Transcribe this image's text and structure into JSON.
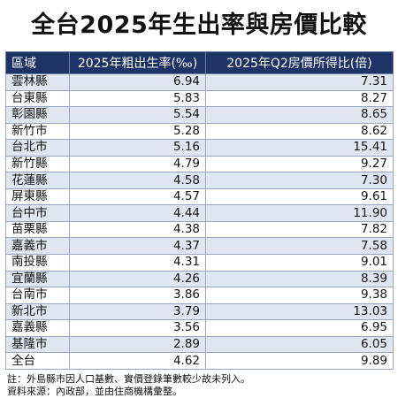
{
  "title": "全台2025年生出率與房價比較",
  "table": {
    "headers": {
      "region": "區域",
      "birth_rate": "2025年粗出生率(‰)",
      "price_income_ratio": "2025年Q2房價所得比(倍)"
    },
    "rows": [
      {
        "region": "雲林縣",
        "birth_rate": "6.94",
        "ratio": "7.31"
      },
      {
        "region": "台東縣",
        "birth_rate": "5.83",
        "ratio": "8.27"
      },
      {
        "region": "彰園縣",
        "birth_rate": "5.54",
        "ratio": "8.65"
      },
      {
        "region": "新竹市",
        "birth_rate": "5.28",
        "ratio": "8.62"
      },
      {
        "region": "台北市",
        "birth_rate": "5.16",
        "ratio": "15.41"
      },
      {
        "region": "新竹縣",
        "birth_rate": "4.79",
        "ratio": "9.27"
      },
      {
        "region": "花蓮縣",
        "birth_rate": "4.58",
        "ratio": "7.30"
      },
      {
        "region": "屏東縣",
        "birth_rate": "4.57",
        "ratio": "9.61"
      },
      {
        "region": "台中市",
        "birth_rate": "4.44",
        "ratio": "11.90"
      },
      {
        "region": "苗栗縣",
        "birth_rate": "4.38",
        "ratio": "7.82"
      },
      {
        "region": "嘉義市",
        "birth_rate": "4.37",
        "ratio": "7.58"
      },
      {
        "region": "南投縣",
        "birth_rate": "4.31",
        "ratio": "9.01"
      },
      {
        "region": "宜蘭縣",
        "birth_rate": "4.26",
        "ratio": "8.39"
      },
      {
        "region": "台南市",
        "birth_rate": "3.86",
        "ratio": "9.38"
      },
      {
        "region": "新北市",
        "birth_rate": "3.79",
        "ratio": "13.03"
      },
      {
        "region": "嘉義縣",
        "birth_rate": "3.56",
        "ratio": "6.95"
      },
      {
        "region": "基隆市",
        "birth_rate": "2.89",
        "ratio": "6.05"
      },
      {
        "region": "全台",
        "birth_rate": "4.62",
        "ratio": "9.89"
      }
    ]
  },
  "notes": [
    "註：外島縣市因人口基數、實價登錄筆數較少故未列入。",
    "資料來源：內政部，並由住商機構彙整。"
  ],
  "colors": {
    "header_bg": "#1f3466",
    "header_text": "#ffffff",
    "row_stripe": "#dfe6f2",
    "row_plain": "#ffffff"
  }
}
